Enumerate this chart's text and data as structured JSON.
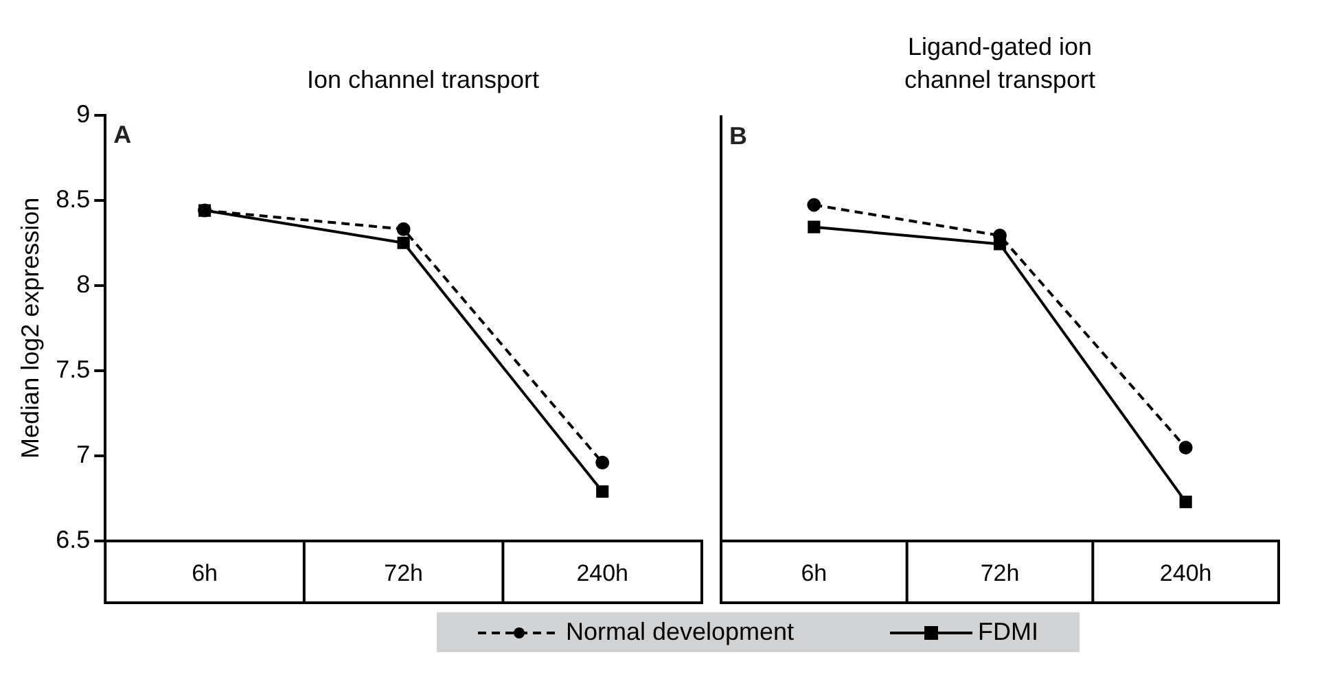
{
  "chart_data": [
    {
      "type": "line",
      "title": "Ion channel transport",
      "ylabel": "Median log2 expression",
      "categories": [
        "6h",
        "72h",
        "240h"
      ],
      "ylim": [
        6.5,
        9
      ],
      "yticks": [
        6.5,
        7,
        7.5,
        8,
        8.5,
        9
      ],
      "grid": false,
      "legend": false,
      "annotations": [
        "A"
      ],
      "series": [
        {
          "color": "#000000",
          "line_style": "dashed",
          "marker": "circle",
          "values": [
            8.44,
            8.33,
            6.96
          ]
        },
        {
          "color": "#000000",
          "line_style": "solid",
          "marker": "square",
          "values": [
            8.44,
            8.25,
            6.79
          ]
        }
      ]
    },
    {
      "type": "line",
      "title": "Ligand-gated ion channel transport",
      "categories": [
        "6h",
        "72h",
        "240h"
      ],
      "ylim": [
        6.5,
        9
      ],
      "yticks": [
        6.5,
        7,
        7.5,
        8,
        8.5,
        9
      ],
      "grid": false,
      "legend": "bottom",
      "tick_labels": "x",
      "annotations": [
        "B"
      ],
      "series": [
        {
          "name": "Normal development",
          "color": "#000000",
          "line_style": "dashed",
          "marker": "circle",
          "values": [
            8.48,
            8.3,
            7.05
          ]
        },
        {
          "name": "FDMI",
          "color": "#000000",
          "line_style": "solid",
          "marker": "square",
          "values": [
            8.35,
            8.25,
            6.73
          ]
        }
      ]
    }
  ]
}
